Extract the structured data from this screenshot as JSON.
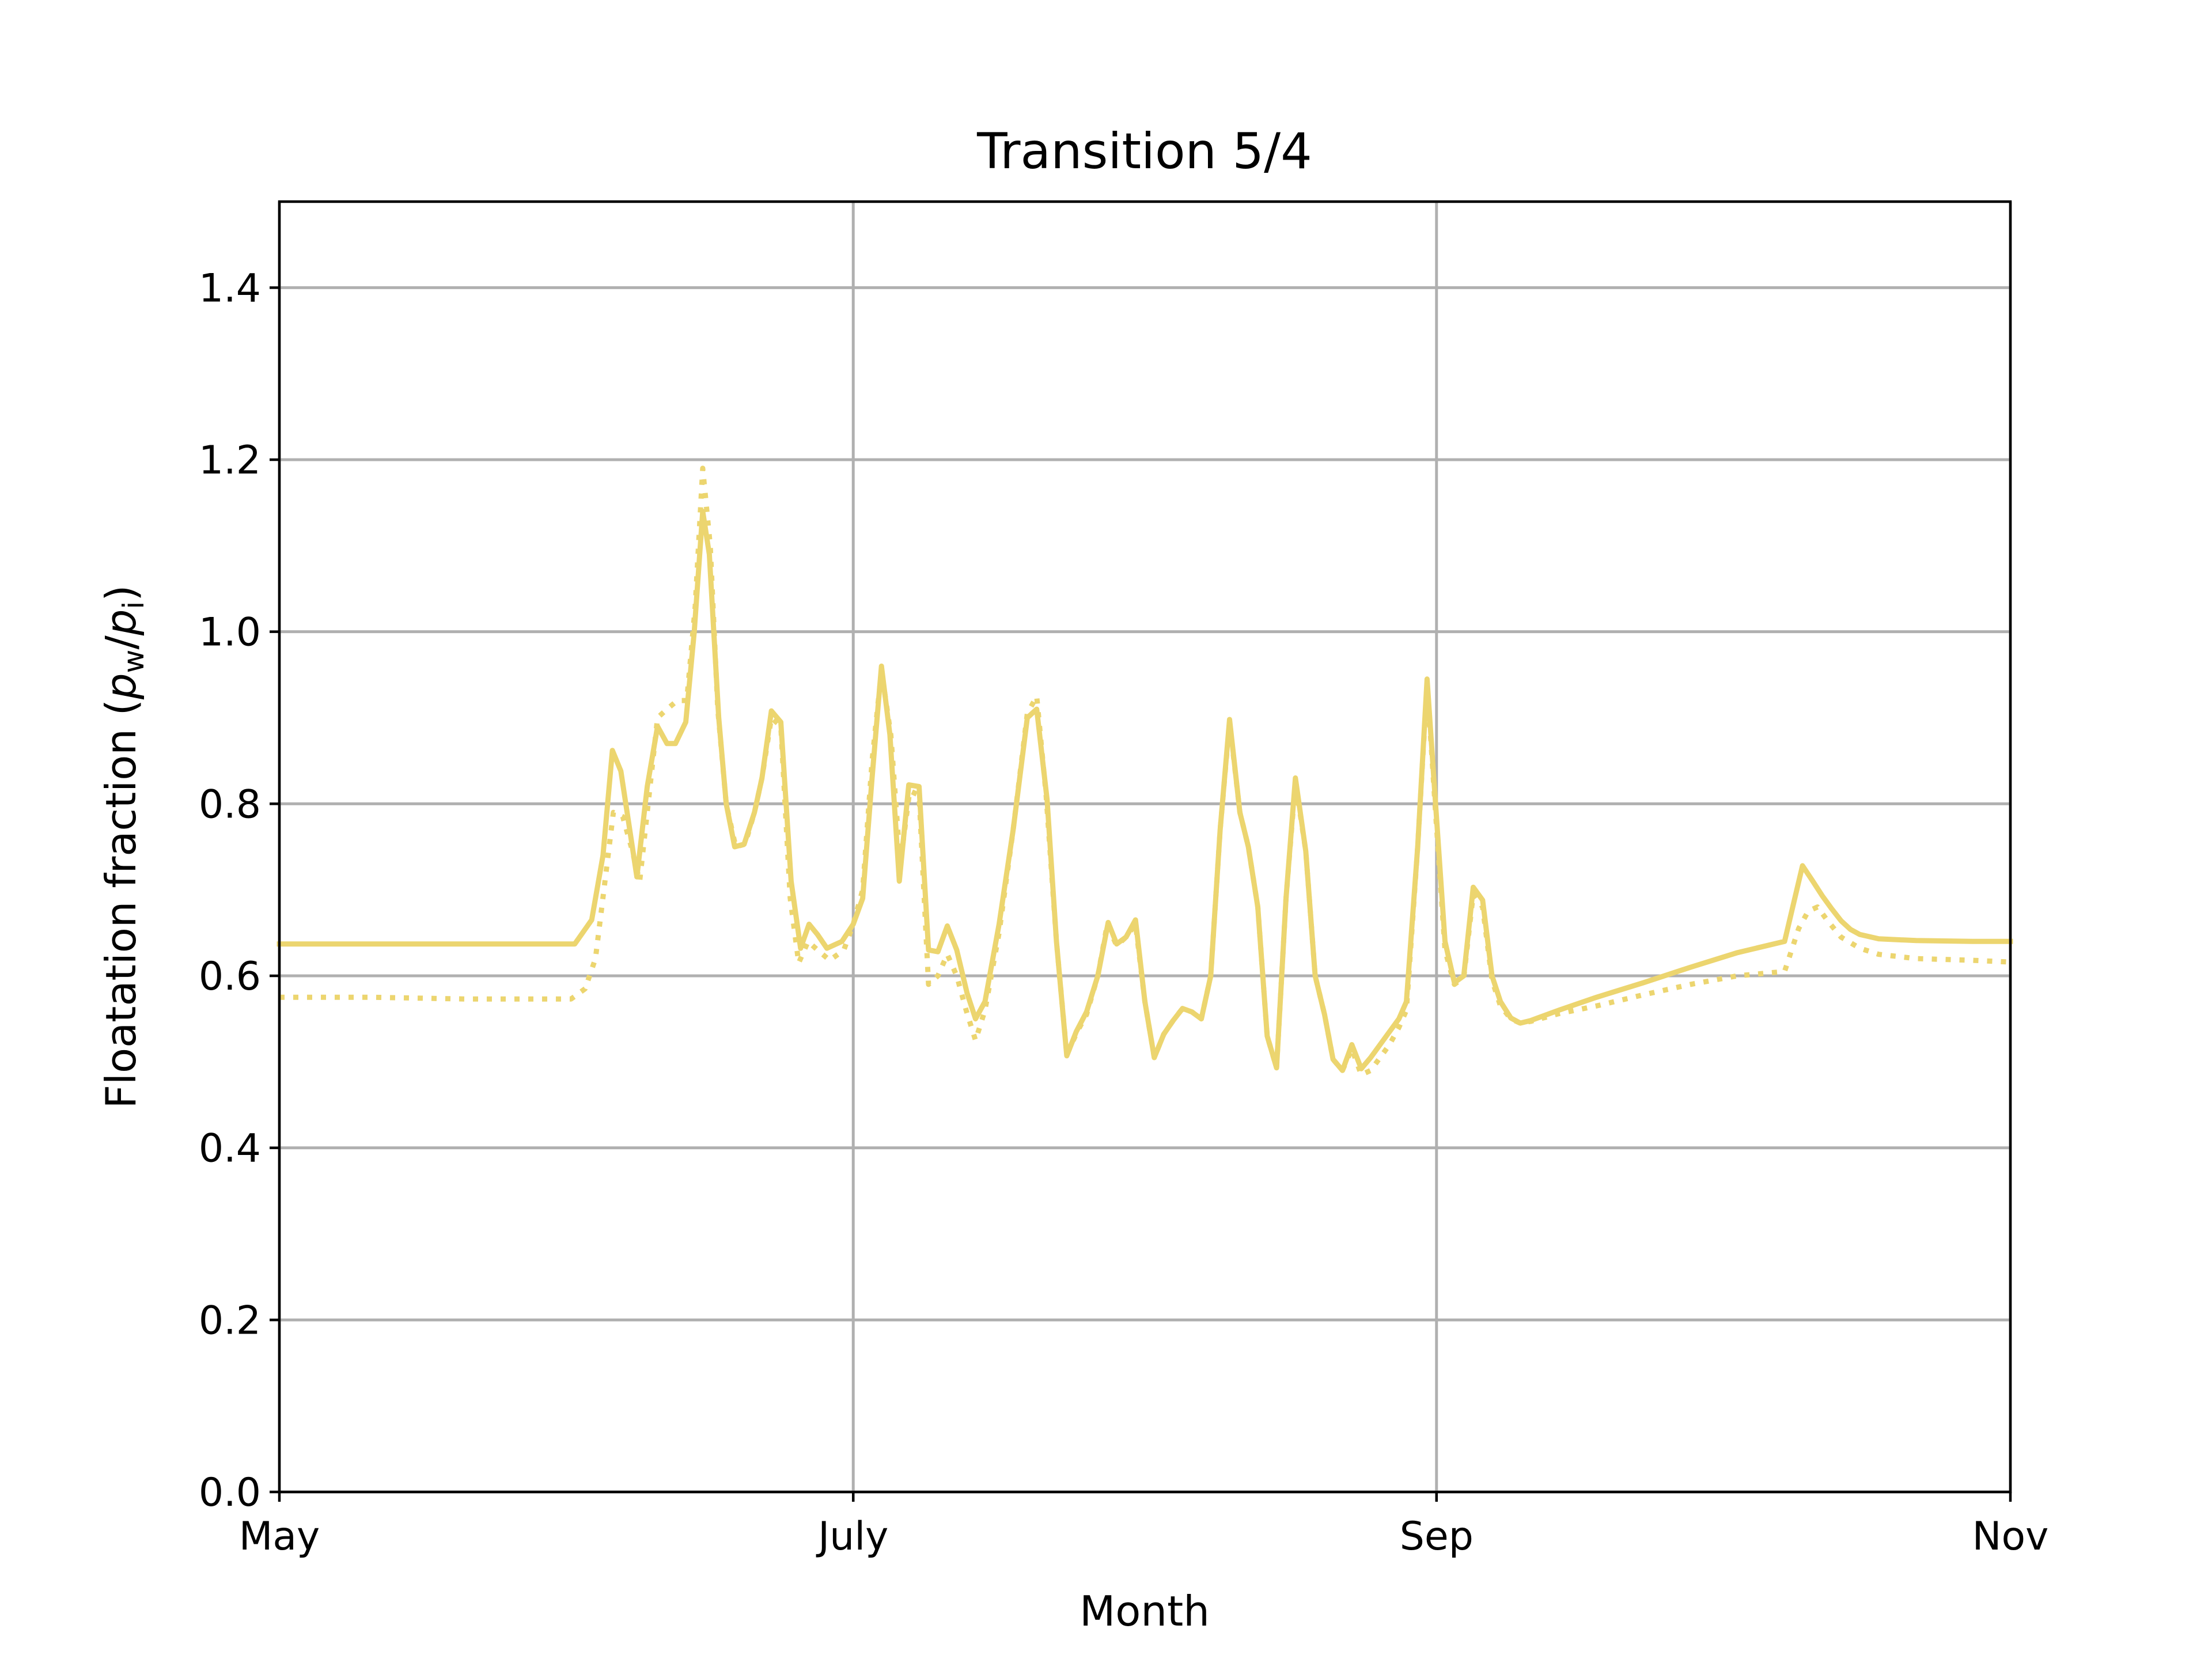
{
  "chart_data": {
    "type": "line",
    "title": "Transition 5/4",
    "xlabel": "Month",
    "ylabel_parts": {
      "prefix": "Floatation fraction (",
      "p1": "p",
      "sub1": "w",
      "slash": "/",
      "p2": "p",
      "sub2": "i",
      "suffix": ")"
    },
    "ylim": [
      0,
      1.5
    ],
    "xlim": [
      0,
      184
    ],
    "grid": true,
    "x_ticks": [
      {
        "value": 0,
        "label": "May"
      },
      {
        "value": 61,
        "label": "July"
      },
      {
        "value": 123,
        "label": "Sep"
      },
      {
        "value": 184,
        "label": "Nov"
      }
    ],
    "y_ticks": [
      {
        "value": 0.0,
        "label": "0.0"
      },
      {
        "value": 0.2,
        "label": "0.2"
      },
      {
        "value": 0.4,
        "label": "0.4"
      },
      {
        "value": 0.6,
        "label": "0.6"
      },
      {
        "value": 0.8,
        "label": "0.8"
      },
      {
        "value": 1.0,
        "label": "1.0"
      },
      {
        "value": 1.2,
        "label": "1.2"
      },
      {
        "value": 1.4,
        "label": "1.4"
      }
    ],
    "series": [
      {
        "style": "solid",
        "color": "#ecd56f",
        "points": [
          [
            0,
            0.637
          ],
          [
            31.4,
            0.637
          ],
          [
            33.2,
            0.665
          ],
          [
            34.4,
            0.74
          ],
          [
            35.4,
            0.862
          ],
          [
            36.3,
            0.838
          ],
          [
            37.1,
            0.78
          ],
          [
            38.0,
            0.715
          ],
          [
            39.1,
            0.82
          ],
          [
            40.2,
            0.89
          ],
          [
            41.2,
            0.87
          ],
          [
            42.1,
            0.87
          ],
          [
            43.2,
            0.895
          ],
          [
            44.1,
            1.0
          ],
          [
            45.0,
            1.14
          ],
          [
            45.7,
            1.09
          ],
          [
            46.7,
            0.9
          ],
          [
            47.5,
            0.8
          ],
          [
            48.4,
            0.75
          ],
          [
            49.4,
            0.753
          ],
          [
            50.5,
            0.79
          ],
          [
            51.3,
            0.83
          ],
          [
            52.3,
            0.908
          ],
          [
            53.3,
            0.895
          ],
          [
            54.4,
            0.71
          ],
          [
            55.4,
            0.632
          ],
          [
            56.3,
            0.66
          ],
          [
            57.2,
            0.648
          ],
          [
            58.2,
            0.632
          ],
          [
            59.8,
            0.64
          ],
          [
            61.0,
            0.66
          ],
          [
            62.0,
            0.69
          ],
          [
            63.0,
            0.83
          ],
          [
            64.0,
            0.96
          ],
          [
            64.9,
            0.88
          ],
          [
            65.9,
            0.71
          ],
          [
            66.9,
            0.822
          ],
          [
            68.0,
            0.82
          ],
          [
            69.0,
            0.63
          ],
          [
            70.0,
            0.628
          ],
          [
            71.0,
            0.658
          ],
          [
            72.0,
            0.63
          ],
          [
            73.1,
            0.58
          ],
          [
            74.0,
            0.55
          ],
          [
            75.0,
            0.57
          ],
          [
            76.5,
            0.66
          ],
          [
            78.0,
            0.77
          ],
          [
            79.5,
            0.9
          ],
          [
            80.5,
            0.91
          ],
          [
            81.6,
            0.805
          ],
          [
            82.6,
            0.64
          ],
          [
            83.7,
            0.507
          ],
          [
            84.7,
            0.535
          ],
          [
            85.8,
            0.558
          ],
          [
            87.0,
            0.6
          ],
          [
            88.1,
            0.662
          ],
          [
            89.0,
            0.637
          ],
          [
            90.0,
            0.645
          ],
          [
            91.0,
            0.665
          ],
          [
            92.0,
            0.57
          ],
          [
            93.0,
            0.505
          ],
          [
            94.0,
            0.532
          ],
          [
            95.0,
            0.548
          ],
          [
            96.0,
            0.562
          ],
          [
            97.0,
            0.558
          ],
          [
            98.0,
            0.55
          ],
          [
            99.0,
            0.6
          ],
          [
            100.0,
            0.77
          ],
          [
            101.0,
            0.898
          ],
          [
            102.1,
            0.79
          ],
          [
            103.0,
            0.75
          ],
          [
            104.0,
            0.68
          ],
          [
            105.0,
            0.53
          ],
          [
            106.0,
            0.493
          ],
          [
            107.0,
            0.69
          ],
          [
            108.0,
            0.83
          ],
          [
            109.1,
            0.745
          ],
          [
            110.1,
            0.6
          ],
          [
            111.1,
            0.555
          ],
          [
            112.0,
            0.503
          ],
          [
            113.0,
            0.49
          ],
          [
            114.0,
            0.52
          ],
          [
            115.0,
            0.492
          ],
          [
            116.0,
            0.505
          ],
          [
            117.0,
            0.52
          ],
          [
            118.0,
            0.535
          ],
          [
            119.0,
            0.55
          ],
          [
            119.8,
            0.57
          ],
          [
            121.0,
            0.75
          ],
          [
            122.0,
            0.945
          ],
          [
            122.9,
            0.8
          ],
          [
            123.9,
            0.64
          ],
          [
            124.9,
            0.592
          ],
          [
            125.9,
            0.6
          ],
          [
            126.9,
            0.703
          ],
          [
            127.9,
            0.688
          ],
          [
            128.9,
            0.6
          ],
          [
            129.8,
            0.57
          ],
          [
            130.9,
            0.551
          ],
          [
            131.9,
            0.545
          ],
          [
            133.0,
            0.548
          ],
          [
            136.0,
            0.56
          ],
          [
            140.0,
            0.575
          ],
          [
            145.0,
            0.592
          ],
          [
            150.0,
            0.61
          ],
          [
            155.0,
            0.627
          ],
          [
            160.0,
            0.64
          ],
          [
            161.9,
            0.728
          ],
          [
            163.0,
            0.71
          ],
          [
            164.0,
            0.693
          ],
          [
            165.0,
            0.678
          ],
          [
            166.0,
            0.664
          ],
          [
            167.0,
            0.654
          ],
          [
            168.0,
            0.648
          ],
          [
            170.0,
            0.643
          ],
          [
            174.0,
            0.641
          ],
          [
            180.0,
            0.64
          ],
          [
            184,
            0.64
          ]
        ]
      },
      {
        "style": "dotted",
        "color": "#ecd56f",
        "points": [
          [
            0,
            0.575
          ],
          [
            10,
            0.575
          ],
          [
            20,
            0.573
          ],
          [
            31.0,
            0.573
          ],
          [
            32.5,
            0.585
          ],
          [
            33.6,
            0.62
          ],
          [
            34.5,
            0.7
          ],
          [
            35.5,
            0.79
          ],
          [
            36.5,
            0.785
          ],
          [
            37.4,
            0.75
          ],
          [
            38.3,
            0.71
          ],
          [
            39.2,
            0.8
          ],
          [
            40.2,
            0.9
          ],
          [
            41.2,
            0.91
          ],
          [
            42.3,
            0.92
          ],
          [
            43.3,
            0.92
          ],
          [
            44.2,
            1.03
          ],
          [
            45.0,
            1.19
          ],
          [
            45.8,
            1.1
          ],
          [
            46.6,
            0.91
          ],
          [
            47.5,
            0.8
          ],
          [
            48.5,
            0.75
          ],
          [
            49.5,
            0.753
          ],
          [
            50.5,
            0.79
          ],
          [
            51.3,
            0.83
          ],
          [
            52.3,
            0.9
          ],
          [
            53.3,
            0.89
          ],
          [
            54.3,
            0.69
          ],
          [
            55.2,
            0.615
          ],
          [
            56.2,
            0.64
          ],
          [
            57.2,
            0.63
          ],
          [
            58.5,
            0.618
          ],
          [
            60.0,
            0.63
          ],
          [
            61.0,
            0.66
          ],
          [
            62.0,
            0.7
          ],
          [
            63.0,
            0.85
          ],
          [
            64.0,
            0.955
          ],
          [
            65.0,
            0.88
          ],
          [
            66.0,
            0.73
          ],
          [
            67.0,
            0.815
          ],
          [
            68.0,
            0.81
          ],
          [
            69.0,
            0.59
          ],
          [
            70.0,
            0.6
          ],
          [
            71.0,
            0.625
          ],
          [
            72.0,
            0.6
          ],
          [
            73.0,
            0.56
          ],
          [
            74.0,
            0.525
          ],
          [
            75.0,
            0.56
          ],
          [
            76.5,
            0.65
          ],
          [
            78.0,
            0.77
          ],
          [
            79.5,
            0.905
          ],
          [
            80.5,
            0.925
          ],
          [
            81.5,
            0.81
          ],
          [
            82.6,
            0.64
          ],
          [
            83.7,
            0.508
          ],
          [
            84.8,
            0.535
          ],
          [
            85.8,
            0.555
          ],
          [
            87.0,
            0.6
          ],
          [
            88.0,
            0.66
          ],
          [
            89.0,
            0.635
          ],
          [
            90.0,
            0.645
          ],
          [
            91.0,
            0.66
          ],
          [
            92.0,
            0.57
          ],
          [
            93.0,
            0.505
          ],
          [
            94.0,
            0.532
          ],
          [
            95.0,
            0.548
          ],
          [
            96.0,
            0.562
          ],
          [
            97.0,
            0.558
          ],
          [
            98.0,
            0.55
          ],
          [
            99.0,
            0.6
          ],
          [
            100.0,
            0.77
          ],
          [
            101.0,
            0.895
          ],
          [
            102.1,
            0.79
          ],
          [
            103.0,
            0.75
          ],
          [
            104.0,
            0.68
          ],
          [
            105.0,
            0.53
          ],
          [
            106.0,
            0.493
          ],
          [
            107.0,
            0.69
          ],
          [
            108.0,
            0.825
          ],
          [
            109.1,
            0.745
          ],
          [
            110.1,
            0.6
          ],
          [
            111.1,
            0.555
          ],
          [
            112.0,
            0.503
          ],
          [
            113.0,
            0.49
          ],
          [
            114.0,
            0.515
          ],
          [
            115.0,
            0.485
          ],
          [
            116.0,
            0.49
          ],
          [
            117.0,
            0.505
          ],
          [
            118.0,
            0.52
          ],
          [
            119.0,
            0.54
          ],
          [
            119.8,
            0.56
          ],
          [
            121.0,
            0.75
          ],
          [
            122.0,
            0.94
          ],
          [
            122.9,
            0.79
          ],
          [
            123.9,
            0.63
          ],
          [
            124.9,
            0.59
          ],
          [
            125.9,
            0.598
          ],
          [
            126.9,
            0.695
          ],
          [
            127.9,
            0.68
          ],
          [
            128.9,
            0.595
          ],
          [
            129.8,
            0.565
          ],
          [
            130.9,
            0.55
          ],
          [
            131.9,
            0.545
          ],
          [
            133.0,
            0.547
          ],
          [
            136.0,
            0.556
          ],
          [
            140.0,
            0.565
          ],
          [
            145.0,
            0.578
          ],
          [
            150.0,
            0.59
          ],
          [
            155.0,
            0.6
          ],
          [
            160.0,
            0.605
          ],
          [
            161.5,
            0.655
          ],
          [
            162.5,
            0.675
          ],
          [
            163.5,
            0.68
          ],
          [
            164.5,
            0.665
          ],
          [
            166.0,
            0.645
          ],
          [
            168.0,
            0.632
          ],
          [
            170.0,
            0.625
          ],
          [
            174.0,
            0.62
          ],
          [
            180.0,
            0.618
          ],
          [
            184,
            0.616
          ]
        ]
      }
    ]
  }
}
